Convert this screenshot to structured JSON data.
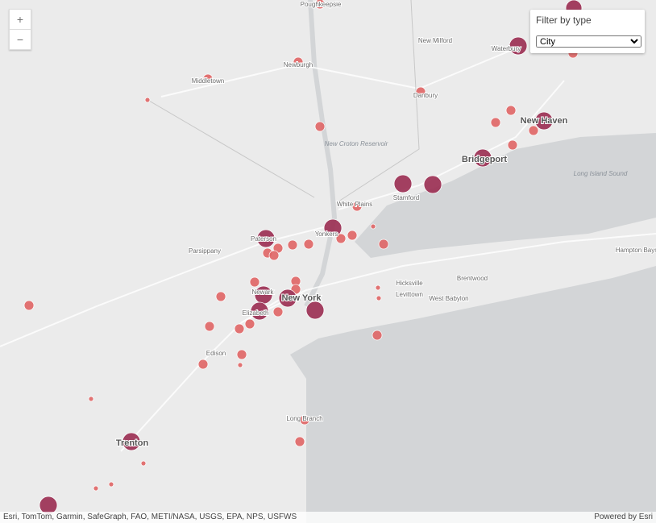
{
  "zoom": {
    "in": "+",
    "out": "−"
  },
  "filter": {
    "label": "Filter by type",
    "selected": "City"
  },
  "places": [
    "Poughkeepsie",
    "New Milford",
    "Waterbury",
    "Newburgh",
    "Middletown",
    "Danbury",
    "New Haven",
    "New Croton Reservoir",
    "Bridgeport",
    "Long Island Sound",
    "Stamford",
    "White Plains",
    "Paterson",
    "Yonkers",
    "Parsippany",
    "Hampton Bays",
    "Brentwood",
    "Hicksville",
    "Levittown",
    "West Babylon",
    "Newark",
    "New York",
    "Elizabeth",
    "Edison",
    "Long Branch",
    "Trenton"
  ],
  "attribution": "Esri, TomTom, Garmin, SafeGraph, FAO, METI/NASA, USGS, EPA, NPS, USFWS",
  "powered_by": "Powered by Esri"
}
